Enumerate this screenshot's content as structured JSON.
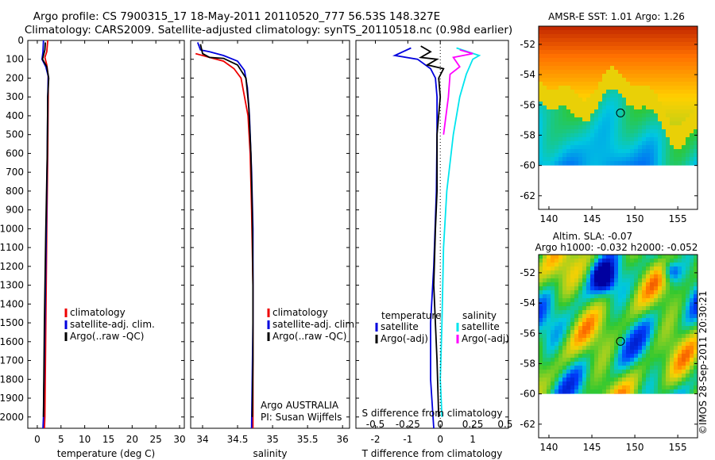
{
  "header": {
    "line1": "Argo profile: CS 7900315_17 18-May-2011 20110520_777 56.53S 148.327E",
    "line2": "Climatology: CARS2009. Satellite-adjusted climatology: synTS_20110518.nc (0.98d earlier)"
  },
  "stamp": "©IMOS 28-Sep-2011 20:30:21",
  "colors": {
    "climatology": "#ee0000",
    "satellite": "#0000dd",
    "argo": "#000000",
    "satellite_s": "#00e5ee",
    "argo_s": "#ff00ff"
  },
  "chart_data": [
    {
      "type": "line",
      "id": "temperature",
      "xlabel": "temperature (deg C)",
      "ylabel": "",
      "xlim": [
        -2,
        31
      ],
      "ylim": [
        2060,
        0
      ],
      "x_ticks": [
        0,
        5,
        10,
        15,
        20,
        25,
        30
      ],
      "y_ticks": [
        0,
        100,
        200,
        300,
        400,
        500,
        600,
        700,
        800,
        900,
        1000,
        1100,
        1200,
        1300,
        1400,
        1500,
        1600,
        1700,
        1800,
        1900,
        2000
      ],
      "legend": [
        "climatology",
        "satellite-adj. clim.",
        "Argo(..raw -QC)"
      ],
      "series": [
        {
          "name": "climatology",
          "color": "#ee0000",
          "points": [
            [
              2.2,
              0
            ],
            [
              2.0,
              60
            ],
            [
              1.6,
              90
            ],
            [
              2.0,
              130
            ],
            [
              2.3,
              190
            ],
            [
              2.3,
              300
            ],
            [
              2.2,
              600
            ],
            [
              2.0,
              1000
            ],
            [
              1.8,
              1500
            ],
            [
              1.6,
              2000
            ],
            [
              1.5,
              2060
            ]
          ]
        },
        {
          "name": "satellite-adj. clim.",
          "color": "#0000dd",
          "points": [
            [
              1.3,
              0
            ],
            [
              1.2,
              60
            ],
            [
              1.0,
              100
            ],
            [
              1.8,
              140
            ],
            [
              2.3,
              190
            ],
            [
              2.2,
              300
            ],
            [
              2.1,
              600
            ],
            [
              1.9,
              1000
            ],
            [
              1.6,
              1500
            ],
            [
              1.3,
              2000
            ],
            [
              1.2,
              2060
            ]
          ]
        },
        {
          "name": "Argo(..raw -QC)",
          "color": "#000000",
          "points": [
            [
              1.7,
              10
            ],
            [
              1.6,
              50
            ],
            [
              1.1,
              100
            ],
            [
              2.0,
              140
            ],
            [
              2.4,
              200
            ],
            [
              2.2,
              300
            ],
            [
              2.1,
              600
            ],
            [
              1.8,
              1000
            ],
            [
              1.5,
              1500
            ],
            [
              1.3,
              2000
            ]
          ]
        }
      ]
    },
    {
      "type": "line",
      "id": "salinity",
      "xlabel": "salinity",
      "ylabel": "",
      "xlim": [
        33.83,
        36.1
      ],
      "ylim": [
        2060,
        0
      ],
      "x_ticks": [
        34,
        34.5,
        35,
        35.5,
        36
      ],
      "y_ticks": [],
      "legend": [
        "climatology",
        "satellite-adj. clim.",
        "Argo(..raw -QC)"
      ],
      "annotation": [
        "Argo AUSTRALIA",
        "PI: Susan Wijffels"
      ],
      "series": [
        {
          "name": "climatology",
          "color": "#ee0000",
          "points": [
            [
              33.9,
              70
            ],
            [
              34.1,
              90
            ],
            [
              34.3,
              110
            ],
            [
              34.45,
              150
            ],
            [
              34.55,
              200
            ],
            [
              34.6,
              300
            ],
            [
              34.65,
              400
            ],
            [
              34.68,
              600
            ],
            [
              34.7,
              900
            ],
            [
              34.72,
              1300
            ],
            [
              34.72,
              2060
            ]
          ]
        },
        {
          "name": "satellite-adj. clim.",
          "color": "#0000dd",
          "points": [
            [
              33.93,
              10
            ],
            [
              33.97,
              50
            ],
            [
              34.1,
              60
            ],
            [
              34.3,
              80
            ],
            [
              34.5,
              110
            ],
            [
              34.6,
              160
            ],
            [
              34.64,
              250
            ],
            [
              34.67,
              400
            ],
            [
              34.7,
              700
            ],
            [
              34.72,
              1000
            ],
            [
              34.72,
              1500
            ],
            [
              34.7,
              2060
            ]
          ]
        },
        {
          "name": "Argo(..raw -QC)",
          "color": "#000000",
          "points": [
            [
              33.97,
              20
            ],
            [
              34.0,
              70
            ],
            [
              34.1,
              90
            ],
            [
              34.3,
              95
            ],
            [
              34.5,
              130
            ],
            [
              34.62,
              200
            ],
            [
              34.66,
              350
            ],
            [
              34.69,
              600
            ],
            [
              34.71,
              900
            ],
            [
              34.72,
              1300
            ],
            [
              34.72,
              1700
            ],
            [
              34.71,
              2000
            ]
          ]
        }
      ]
    },
    {
      "type": "line",
      "id": "difference",
      "xlabel": "T difference from climatology",
      "xlabel_top": "S difference from climatology",
      "xlim": [
        -2.6,
        2.1
      ],
      "ylim": [
        2060,
        0
      ],
      "x_ticks": [
        -2,
        -1,
        0,
        1
      ],
      "x_ticks_s": [
        "-0.5",
        "-0.25",
        "0",
        "0.25",
        "0.5"
      ],
      "x_ticks_s_pos": [
        -2,
        -1,
        0,
        1,
        2
      ],
      "legend_t_title": "temperature",
      "legend_s_title": "salinity",
      "legend_t": [
        "satellite",
        "Argo(-adj)"
      ],
      "legend_s": [
        "satellite",
        "Argo(-adj)"
      ],
      "series": [
        {
          "name": "temperature satellite",
          "color": "#0000dd",
          "points": [
            [
              -0.9,
              40
            ],
            [
              -1.4,
              80
            ],
            [
              -0.7,
              100
            ],
            [
              -0.3,
              150
            ],
            [
              -0.15,
              200
            ],
            [
              -0.1,
              300
            ],
            [
              -0.1,
              500
            ],
            [
              -0.12,
              800
            ],
            [
              -0.2,
              1200
            ],
            [
              -0.3,
              1500
            ],
            [
              -0.3,
              1800
            ],
            [
              -0.2,
              2060
            ]
          ]
        },
        {
          "name": "temperature Argo(-adj)",
          "color": "#000000",
          "points": [
            [
              -0.6,
              30
            ],
            [
              -0.3,
              60
            ],
            [
              -0.6,
              90
            ],
            [
              -0.1,
              100
            ],
            [
              -0.4,
              130
            ],
            [
              0.1,
              150
            ],
            [
              -0.05,
              200
            ],
            [
              0.0,
              300
            ],
            [
              -0.1,
              500
            ],
            [
              -0.1,
              800
            ],
            [
              -0.15,
              1000
            ],
            [
              -0.2,
              1300
            ],
            [
              -0.1,
              1700
            ],
            [
              -0.05,
              2000
            ]
          ]
        },
        {
          "name": "salinity satellite",
          "color": "#00e5ee",
          "points": [
            [
              0.5,
              40
            ],
            [
              1.2,
              80
            ],
            [
              1.0,
              100
            ],
            [
              0.8,
              180
            ],
            [
              0.6,
              300
            ],
            [
              0.4,
              500
            ],
            [
              0.2,
              800
            ],
            [
              0.1,
              1100
            ],
            [
              0.05,
              1500
            ],
            [
              0.0,
              1800
            ],
            [
              0.05,
              2000
            ]
          ]
        },
        {
          "name": "salinity Argo(-adj)",
          "color": "#ff00ff",
          "points": [
            [
              0.6,
              50
            ],
            [
              1.0,
              70
            ],
            [
              0.4,
              90
            ],
            [
              0.6,
              140
            ],
            [
              0.3,
              180
            ],
            [
              0.25,
              300
            ],
            [
              0.1,
              500
            ]
          ]
        }
      ]
    },
    {
      "type": "heatmap",
      "id": "sst-map",
      "title": "AMSR-E SST: 1.01 Argo: 1.26",
      "xlim": [
        138.8,
        157.3
      ],
      "ylim": [
        -62.9,
        -50.8
      ],
      "x_ticks": [
        140,
        145,
        150,
        155
      ],
      "y_ticks": [
        -52,
        -54,
        -56,
        -58,
        -60,
        -62
      ],
      "data_lat_min": -60,
      "marker": [
        148.33,
        -56.53
      ],
      "variant": "sst"
    },
    {
      "type": "heatmap",
      "id": "sla-map",
      "title_line1": "Altim. SLA: -0.07",
      "title_line2": "Argo h1000: -0.032 h2000: -0.052",
      "xlim": [
        138.8,
        157.3
      ],
      "ylim": [
        -62.9,
        -50.8
      ],
      "x_ticks": [
        140,
        145,
        150,
        155
      ],
      "y_ticks": [
        -52,
        -54,
        -56,
        -58,
        -60,
        -62
      ],
      "data_lat_min": -60,
      "marker": [
        148.33,
        -56.53
      ],
      "variant": "sla"
    }
  ]
}
